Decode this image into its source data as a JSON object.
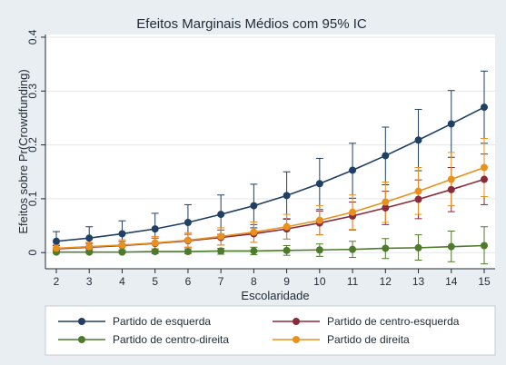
{
  "chart_data": {
    "type": "line",
    "title": "Efeitos Marginais Médios com 95% IC",
    "xlabel": "Escolaridade",
    "ylabel": "Efeitos sobre Pr(Crowdfunding)",
    "x": [
      2,
      3,
      4,
      5,
      6,
      7,
      8,
      9,
      10,
      11,
      12,
      13,
      14,
      15
    ],
    "xlim": [
      1.8,
      15.2
    ],
    "ylim": [
      -0.03,
      0.405
    ],
    "yticks": [
      0,
      0.1,
      0.2,
      0.3,
      0.4
    ],
    "ytick_labels": [
      "0",
      "0.1",
      "0.2",
      "0.3",
      "0.4"
    ],
    "grid": true,
    "legend_position": "bottom",
    "series": [
      {
        "name": "Partido de esquerda",
        "color": "#1f3f63",
        "values": [
          0.021,
          0.027,
          0.035,
          0.044,
          0.056,
          0.071,
          0.087,
          0.106,
          0.128,
          0.153,
          0.18,
          0.209,
          0.239,
          0.27
        ],
        "lower": [
          0.004,
          0.007,
          0.012,
          0.018,
          0.025,
          0.034,
          0.046,
          0.062,
          0.08,
          0.101,
          0.126,
          0.152,
          0.177,
          0.203
        ],
        "upper": [
          0.039,
          0.048,
          0.059,
          0.073,
          0.089,
          0.107,
          0.127,
          0.15,
          0.175,
          0.203,
          0.233,
          0.266,
          0.301,
          0.337
        ]
      },
      {
        "name": "Partido de centro-esquerda",
        "color": "#8b2a38",
        "values": [
          0.007,
          0.01,
          0.013,
          0.017,
          0.022,
          0.028,
          0.035,
          0.044,
          0.055,
          0.068,
          0.083,
          0.099,
          0.117,
          0.136
        ],
        "lower": [
          0.002,
          0.003,
          0.005,
          0.007,
          0.01,
          0.014,
          0.019,
          0.025,
          0.033,
          0.042,
          0.052,
          0.063,
          0.076,
          0.089
        ],
        "upper": [
          0.013,
          0.017,
          0.021,
          0.027,
          0.034,
          0.042,
          0.052,
          0.063,
          0.077,
          0.094,
          0.114,
          0.135,
          0.158,
          0.183
        ]
      },
      {
        "name": "Partido de centro-direita",
        "color": "#4e7a2c",
        "values": [
          0.001,
          0.001,
          0.001,
          0.002,
          0.002,
          0.003,
          0.003,
          0.004,
          0.005,
          0.006,
          0.008,
          0.009,
          0.011,
          0.013
        ],
        "lower": [
          -0.001,
          -0.001,
          -0.001,
          -0.002,
          -0.002,
          -0.003,
          -0.004,
          -0.005,
          -0.007,
          -0.009,
          -0.011,
          -0.014,
          -0.017,
          -0.021
        ],
        "upper": [
          0.003,
          0.004,
          0.004,
          0.005,
          0.007,
          0.008,
          0.01,
          0.013,
          0.016,
          0.021,
          0.026,
          0.033,
          0.04,
          0.048
        ]
      },
      {
        "name": "Partido de direita",
        "color": "#e8911e",
        "values": [
          0.008,
          0.011,
          0.014,
          0.018,
          0.023,
          0.03,
          0.038,
          0.048,
          0.06,
          0.075,
          0.094,
          0.114,
          0.136,
          0.158
        ],
        "lower": [
          0.002,
          0.003,
          0.005,
          0.007,
          0.01,
          0.014,
          0.019,
          0.025,
          0.033,
          0.043,
          0.056,
          0.071,
          0.087,
          0.104
        ],
        "upper": [
          0.015,
          0.019,
          0.024,
          0.03,
          0.037,
          0.046,
          0.057,
          0.071,
          0.087,
          0.107,
          0.131,
          0.158,
          0.186,
          0.212
        ]
      }
    ]
  }
}
